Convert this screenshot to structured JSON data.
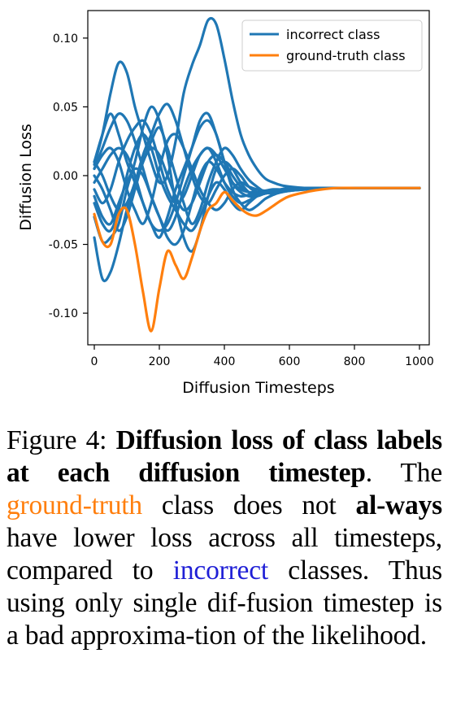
{
  "chart_data": {
    "type": "line",
    "xlabel": "Diffusion Timesteps",
    "ylabel": "Diffusion Loss",
    "xlim": [
      -20,
      1030
    ],
    "ylim": [
      -0.123,
      0.12
    ],
    "xticks": [
      "0",
      "200",
      "400",
      "600",
      "800",
      "1000"
    ],
    "yticks": [
      "0.10",
      "0.05",
      "0.00",
      "-0.05",
      "-0.10"
    ],
    "legend": {
      "placement": "top-right",
      "entries": [
        "incorrect class",
        "ground-truth class"
      ]
    },
    "colors": {
      "incorrect": "#1f77b4",
      "ground_truth": "#ff7f0e"
    },
    "grid": false,
    "x": [
      0,
      25,
      50,
      75,
      100,
      125,
      150,
      175,
      200,
      225,
      250,
      275,
      300,
      325,
      350,
      375,
      400,
      425,
      450,
      475,
      500,
      525,
      550,
      575,
      600,
      650,
      700,
      750,
      800,
      850,
      900,
      950,
      1000
    ],
    "series": [
      {
        "name": "incorrect class",
        "values": [
          0.008,
          0.03,
          0.06,
          0.082,
          0.075,
          0.05,
          0.03,
          0.01,
          -0.005,
          0.0,
          0.025,
          0.06,
          0.08,
          0.095,
          0.113,
          0.11,
          0.085,
          0.055,
          0.03,
          0.015,
          0.005,
          -0.002,
          -0.005,
          -0.007,
          -0.008,
          -0.009,
          -0.009,
          -0.009,
          -0.009,
          -0.009,
          -0.009,
          -0.009,
          -0.009
        ]
      },
      {
        "name": "",
        "values": [
          -0.045,
          -0.075,
          -0.07,
          -0.05,
          -0.025,
          -0.005,
          0.01,
          0.025,
          0.035,
          0.02,
          0.0,
          -0.02,
          -0.035,
          -0.025,
          -0.005,
          0.01,
          0.02,
          0.015,
          0.005,
          -0.003,
          -0.008,
          -0.012,
          -0.013,
          -0.012,
          -0.011,
          -0.01,
          -0.009,
          -0.009,
          -0.009,
          -0.009,
          -0.009,
          -0.009,
          -0.009
        ]
      },
      {
        "name": "",
        "values": [
          -0.03,
          -0.048,
          -0.045,
          -0.035,
          -0.01,
          0.01,
          0.035,
          0.05,
          0.04,
          0.015,
          -0.02,
          -0.045,
          -0.055,
          -0.04,
          -0.015,
          0.005,
          0.01,
          0.005,
          -0.005,
          -0.012,
          -0.014,
          -0.013,
          -0.012,
          -0.011,
          -0.01,
          -0.009,
          -0.009,
          -0.009,
          -0.009,
          -0.009,
          -0.009,
          -0.009,
          -0.009
        ]
      },
      {
        "name": "",
        "values": [
          0.01,
          0.03,
          0.045,
          0.03,
          0.01,
          -0.005,
          -0.02,
          -0.035,
          -0.045,
          -0.03,
          -0.01,
          0.005,
          0.02,
          0.035,
          0.04,
          0.03,
          0.01,
          -0.01,
          -0.02,
          -0.025,
          -0.022,
          -0.017,
          -0.014,
          -0.012,
          -0.011,
          -0.01,
          -0.009,
          -0.009,
          -0.009,
          -0.009,
          -0.009,
          -0.009,
          -0.009
        ]
      },
      {
        "name": "",
        "values": [
          0.005,
          0.02,
          0.035,
          0.045,
          0.04,
          0.025,
          0.005,
          -0.015,
          -0.03,
          -0.04,
          -0.03,
          -0.01,
          0.005,
          0.015,
          0.02,
          0.01,
          -0.005,
          -0.015,
          -0.02,
          -0.018,
          -0.015,
          -0.013,
          -0.012,
          -0.011,
          -0.01,
          -0.009,
          -0.009,
          -0.009,
          -0.009,
          -0.009,
          -0.009,
          -0.009,
          -0.009
        ]
      },
      {
        "name": "",
        "values": [
          -0.01,
          -0.02,
          -0.01,
          0.01,
          0.025,
          0.035,
          0.04,
          0.03,
          0.01,
          -0.01,
          -0.02,
          -0.015,
          0.0,
          0.015,
          0.02,
          0.015,
          0.005,
          -0.005,
          -0.01,
          -0.012,
          -0.012,
          -0.011,
          -0.01,
          -0.01,
          -0.009,
          -0.009,
          -0.009,
          -0.009,
          -0.009,
          -0.009,
          -0.009,
          -0.009,
          -0.009
        ]
      },
      {
        "name": "",
        "values": [
          0.0,
          -0.01,
          -0.025,
          -0.04,
          -0.03,
          -0.01,
          0.01,
          0.02,
          0.015,
          0.0,
          -0.015,
          -0.025,
          -0.02,
          -0.005,
          0.01,
          0.015,
          0.01,
          0.0,
          -0.008,
          -0.012,
          -0.013,
          -0.012,
          -0.011,
          -0.01,
          -0.009,
          -0.009,
          -0.009,
          -0.009,
          -0.009,
          -0.009,
          -0.009,
          -0.009,
          -0.009
        ]
      },
      {
        "name": "",
        "values": [
          -0.02,
          -0.035,
          -0.04,
          -0.025,
          0.0,
          0.02,
          0.03,
          0.02,
          0.0,
          -0.015,
          -0.025,
          -0.035,
          -0.04,
          -0.03,
          -0.015,
          -0.005,
          -0.01,
          -0.02,
          -0.025,
          -0.02,
          -0.015,
          -0.012,
          -0.011,
          -0.01,
          -0.009,
          -0.009,
          -0.009,
          -0.009,
          -0.009,
          -0.009,
          -0.009,
          -0.009,
          -0.009
        ]
      },
      {
        "name": "",
        "values": [
          0.005,
          0.015,
          0.02,
          0.01,
          -0.01,
          -0.025,
          -0.035,
          -0.02,
          0.005,
          0.025,
          0.03,
          0.02,
          0.005,
          -0.01,
          -0.02,
          -0.025,
          -0.02,
          -0.01,
          -0.005,
          -0.008,
          -0.01,
          -0.011,
          -0.011,
          -0.01,
          -0.009,
          -0.009,
          -0.009,
          -0.009,
          -0.009,
          -0.009,
          -0.009,
          -0.009,
          -0.009
        ]
      },
      {
        "name": "",
        "values": [
          -0.005,
          0.005,
          0.015,
          0.02,
          0.015,
          0.0,
          -0.02,
          -0.035,
          -0.04,
          -0.035,
          -0.02,
          0.0,
          0.02,
          0.04,
          0.045,
          0.03,
          0.01,
          -0.005,
          -0.012,
          -0.015,
          -0.015,
          -0.013,
          -0.012,
          -0.011,
          -0.01,
          -0.009,
          -0.009,
          -0.009,
          -0.009,
          -0.009,
          -0.009,
          -0.009,
          -0.009
        ]
      },
      {
        "name": "",
        "values": [
          0.01,
          0.0,
          -0.015,
          -0.025,
          -0.02,
          -0.005,
          0.015,
          0.03,
          0.045,
          0.052,
          0.04,
          0.02,
          0.0,
          -0.015,
          -0.02,
          -0.01,
          0.0,
          0.005,
          0.0,
          -0.008,
          -0.012,
          -0.012,
          -0.011,
          -0.01,
          -0.009,
          -0.009,
          -0.009,
          -0.009,
          -0.009,
          -0.009,
          -0.009,
          -0.009,
          -0.009
        ]
      },
      {
        "name": "",
        "values": [
          -0.015,
          -0.03,
          -0.035,
          -0.02,
          -0.005,
          0.005,
          0.0,
          -0.015,
          -0.03,
          -0.045,
          -0.05,
          -0.04,
          -0.02,
          0.0,
          0.01,
          0.005,
          -0.005,
          -0.012,
          -0.015,
          -0.014,
          -0.013,
          -0.012,
          -0.011,
          -0.01,
          -0.009,
          -0.009,
          -0.009,
          -0.009,
          -0.009,
          -0.009,
          -0.009,
          -0.009,
          -0.009
        ]
      }
    ],
    "ground_truth": {
      "name": "ground-truth class",
      "values": [
        -0.028,
        -0.048,
        -0.05,
        -0.028,
        -0.025,
        -0.05,
        -0.085,
        -0.113,
        -0.082,
        -0.055,
        -0.065,
        -0.075,
        -0.06,
        -0.04,
        -0.025,
        -0.02,
        -0.012,
        -0.018,
        -0.024,
        -0.028,
        -0.029,
        -0.026,
        -0.022,
        -0.018,
        -0.015,
        -0.012,
        -0.01,
        -0.009,
        -0.009,
        -0.009,
        -0.009,
        -0.009,
        -0.009
      ]
    }
  },
  "caption": {
    "prefix": "Figure 4:",
    "bold": "Diffusion loss of class labels at each diffusion timestep",
    "period": ".",
    "t1": "The",
    "gt_word": "ground-truth",
    "t2": "class does not",
    "bold2": "al-ways",
    "t3": "have lower loss across all timesteps, compared to",
    "inc_word": "incorrect",
    "t4": "classes. Thus using only single dif-fusion timestep is a bad approxima-tion of the likelihood."
  }
}
